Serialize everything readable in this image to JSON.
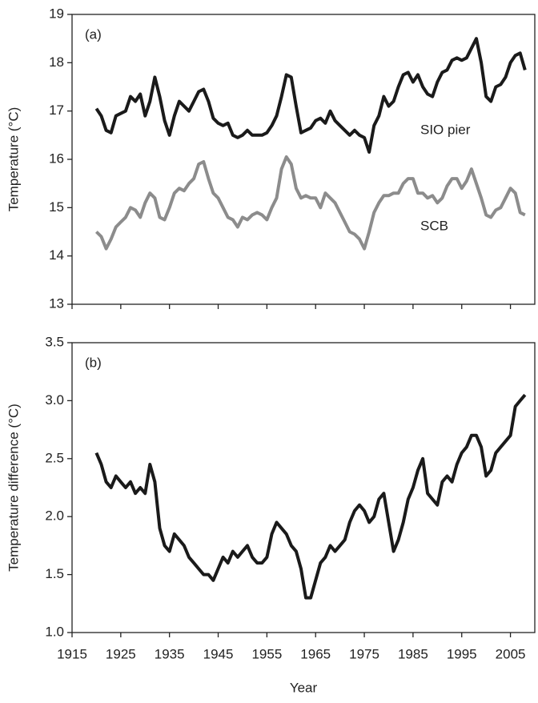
{
  "chart_data": [
    {
      "type": "line",
      "panel_label": "(a)",
      "ylabel": "Temperature (°C)",
      "x": [
        1920,
        1921,
        1922,
        1923,
        1924,
        1925,
        1926,
        1927,
        1928,
        1929,
        1930,
        1931,
        1932,
        1933,
        1934,
        1935,
        1936,
        1937,
        1938,
        1939,
        1940,
        1941,
        1942,
        1943,
        1944,
        1945,
        1946,
        1947,
        1948,
        1949,
        1950,
        1951,
        1952,
        1953,
        1954,
        1955,
        1956,
        1957,
        1958,
        1959,
        1960,
        1961,
        1962,
        1963,
        1964,
        1965,
        1966,
        1967,
        1968,
        1969,
        1970,
        1971,
        1972,
        1973,
        1974,
        1975,
        1976,
        1977,
        1978,
        1979,
        1980,
        1981,
        1982,
        1983,
        1984,
        1985,
        1986,
        1987,
        1988,
        1989,
        1990,
        1991,
        1992,
        1993,
        1994,
        1995,
        1996,
        1997,
        1998,
        1999,
        2000,
        2001,
        2002,
        2003,
        2004,
        2005,
        2006,
        2007,
        2008
      ],
      "series": [
        {
          "name": "SIO pier",
          "color": "#1a1a1a",
          "values": [
            17.05,
            16.9,
            16.6,
            16.55,
            16.9,
            16.95,
            17.0,
            17.3,
            17.2,
            17.35,
            16.9,
            17.2,
            17.7,
            17.3,
            16.8,
            16.5,
            16.9,
            17.2,
            17.1,
            17.0,
            17.2,
            17.4,
            17.45,
            17.2,
            16.85,
            16.75,
            16.7,
            16.75,
            16.5,
            16.45,
            16.5,
            16.6,
            16.5,
            16.5,
            16.5,
            16.55,
            16.7,
            16.9,
            17.3,
            17.75,
            17.7,
            17.1,
            16.55,
            16.6,
            16.65,
            16.8,
            16.85,
            16.75,
            17.0,
            16.8,
            16.7,
            16.6,
            16.5,
            16.6,
            16.5,
            16.45,
            16.15,
            16.7,
            16.9,
            17.3,
            17.1,
            17.2,
            17.5,
            17.75,
            17.8,
            17.6,
            17.75,
            17.5,
            17.35,
            17.3,
            17.6,
            17.8,
            17.85,
            18.05,
            18.1,
            18.05,
            18.1,
            18.3,
            18.5,
            18.0,
            17.3,
            17.2,
            17.5,
            17.55,
            17.7,
            18.0,
            18.15,
            18.2,
            17.85
          ]
        },
        {
          "name": "SCB",
          "color": "#8c8c8c",
          "values": [
            14.5,
            14.4,
            14.15,
            14.35,
            14.6,
            14.7,
            14.8,
            15.0,
            14.95,
            14.8,
            15.1,
            15.3,
            15.2,
            14.8,
            14.75,
            15.0,
            15.3,
            15.4,
            15.35,
            15.5,
            15.6,
            15.9,
            15.95,
            15.6,
            15.3,
            15.2,
            15.0,
            14.8,
            14.75,
            14.6,
            14.8,
            14.75,
            14.85,
            14.9,
            14.85,
            14.75,
            15.0,
            15.2,
            15.8,
            16.05,
            15.9,
            15.4,
            15.2,
            15.25,
            15.2,
            15.2,
            15.0,
            15.3,
            15.2,
            15.1,
            14.9,
            14.7,
            14.5,
            14.45,
            14.35,
            14.15,
            14.5,
            14.9,
            15.1,
            15.25,
            15.25,
            15.3,
            15.3,
            15.5,
            15.6,
            15.6,
            15.3,
            15.3,
            15.2,
            15.25,
            15.1,
            15.2,
            15.45,
            15.6,
            15.6,
            15.4,
            15.55,
            15.8,
            15.5,
            15.2,
            14.85,
            14.8,
            14.95,
            15.0,
            15.2,
            15.4,
            15.3,
            14.9,
            14.85
          ]
        }
      ],
      "xlim": [
        1915,
        2010
      ],
      "xticks": [
        1915,
        1925,
        1935,
        1945,
        1955,
        1965,
        1975,
        1985,
        1995,
        2005
      ],
      "show_xtick_labels": false,
      "ylim": [
        13,
        19
      ],
      "yticks": [
        13,
        14,
        15,
        16,
        17,
        18,
        19
      ]
    },
    {
      "type": "line",
      "panel_label": "(b)",
      "ylabel": "Temperature difference (°C)",
      "xlabel": "Year",
      "x": [
        1920,
        1921,
        1922,
        1923,
        1924,
        1925,
        1926,
        1927,
        1928,
        1929,
        1930,
        1931,
        1932,
        1933,
        1934,
        1935,
        1936,
        1937,
        1938,
        1939,
        1940,
        1941,
        1942,
        1943,
        1944,
        1945,
        1946,
        1947,
        1948,
        1949,
        1950,
        1951,
        1952,
        1953,
        1954,
        1955,
        1956,
        1957,
        1958,
        1959,
        1960,
        1961,
        1962,
        1963,
        1964,
        1965,
        1966,
        1967,
        1968,
        1969,
        1970,
        1971,
        1972,
        1973,
        1974,
        1975,
        1976,
        1977,
        1978,
        1979,
        1980,
        1981,
        1982,
        1983,
        1984,
        1985,
        1986,
        1987,
        1988,
        1989,
        1990,
        1991,
        1992,
        1993,
        1994,
        1995,
        1996,
        1997,
        1998,
        1999,
        2000,
        2001,
        2002,
        2003,
        2004,
        2005,
        2006,
        2007,
        2008
      ],
      "series": [
        {
          "color": "#1a1a1a",
          "values": [
            2.55,
            2.45,
            2.3,
            2.25,
            2.35,
            2.3,
            2.25,
            2.3,
            2.2,
            2.25,
            2.2,
            2.45,
            2.3,
            1.9,
            1.75,
            1.7,
            1.85,
            1.8,
            1.75,
            1.65,
            1.6,
            1.55,
            1.5,
            1.5,
            1.45,
            1.55,
            1.65,
            1.6,
            1.7,
            1.65,
            1.7,
            1.75,
            1.65,
            1.6,
            1.6,
            1.65,
            1.85,
            1.95,
            1.9,
            1.85,
            1.75,
            1.7,
            1.55,
            1.3,
            1.3,
            1.45,
            1.6,
            1.65,
            1.75,
            1.7,
            1.75,
            1.8,
            1.95,
            2.05,
            2.1,
            2.05,
            1.95,
            2.0,
            2.15,
            2.2,
            1.95,
            1.7,
            1.8,
            1.95,
            2.15,
            2.25,
            2.4,
            2.5,
            2.2,
            2.15,
            2.1,
            2.3,
            2.35,
            2.3,
            2.45,
            2.55,
            2.6,
            2.7,
            2.7,
            2.6,
            2.35,
            2.4,
            2.55,
            2.6,
            2.65,
            2.7,
            2.95,
            3.0,
            3.05
          ]
        }
      ],
      "xlim": [
        1915,
        2010
      ],
      "xticks": [
        1915,
        1925,
        1935,
        1945,
        1955,
        1965,
        1975,
        1985,
        1995,
        2005
      ],
      "show_xtick_labels": true,
      "ylim": [
        1,
        3.5
      ],
      "yticks": [
        {
          "value": 1,
          "label": "1.0"
        },
        1.5,
        {
          "value": 2,
          "label": "2.0"
        },
        2.5,
        {
          "value": 3,
          "label": "3.0"
        },
        3.5
      ]
    }
  ]
}
